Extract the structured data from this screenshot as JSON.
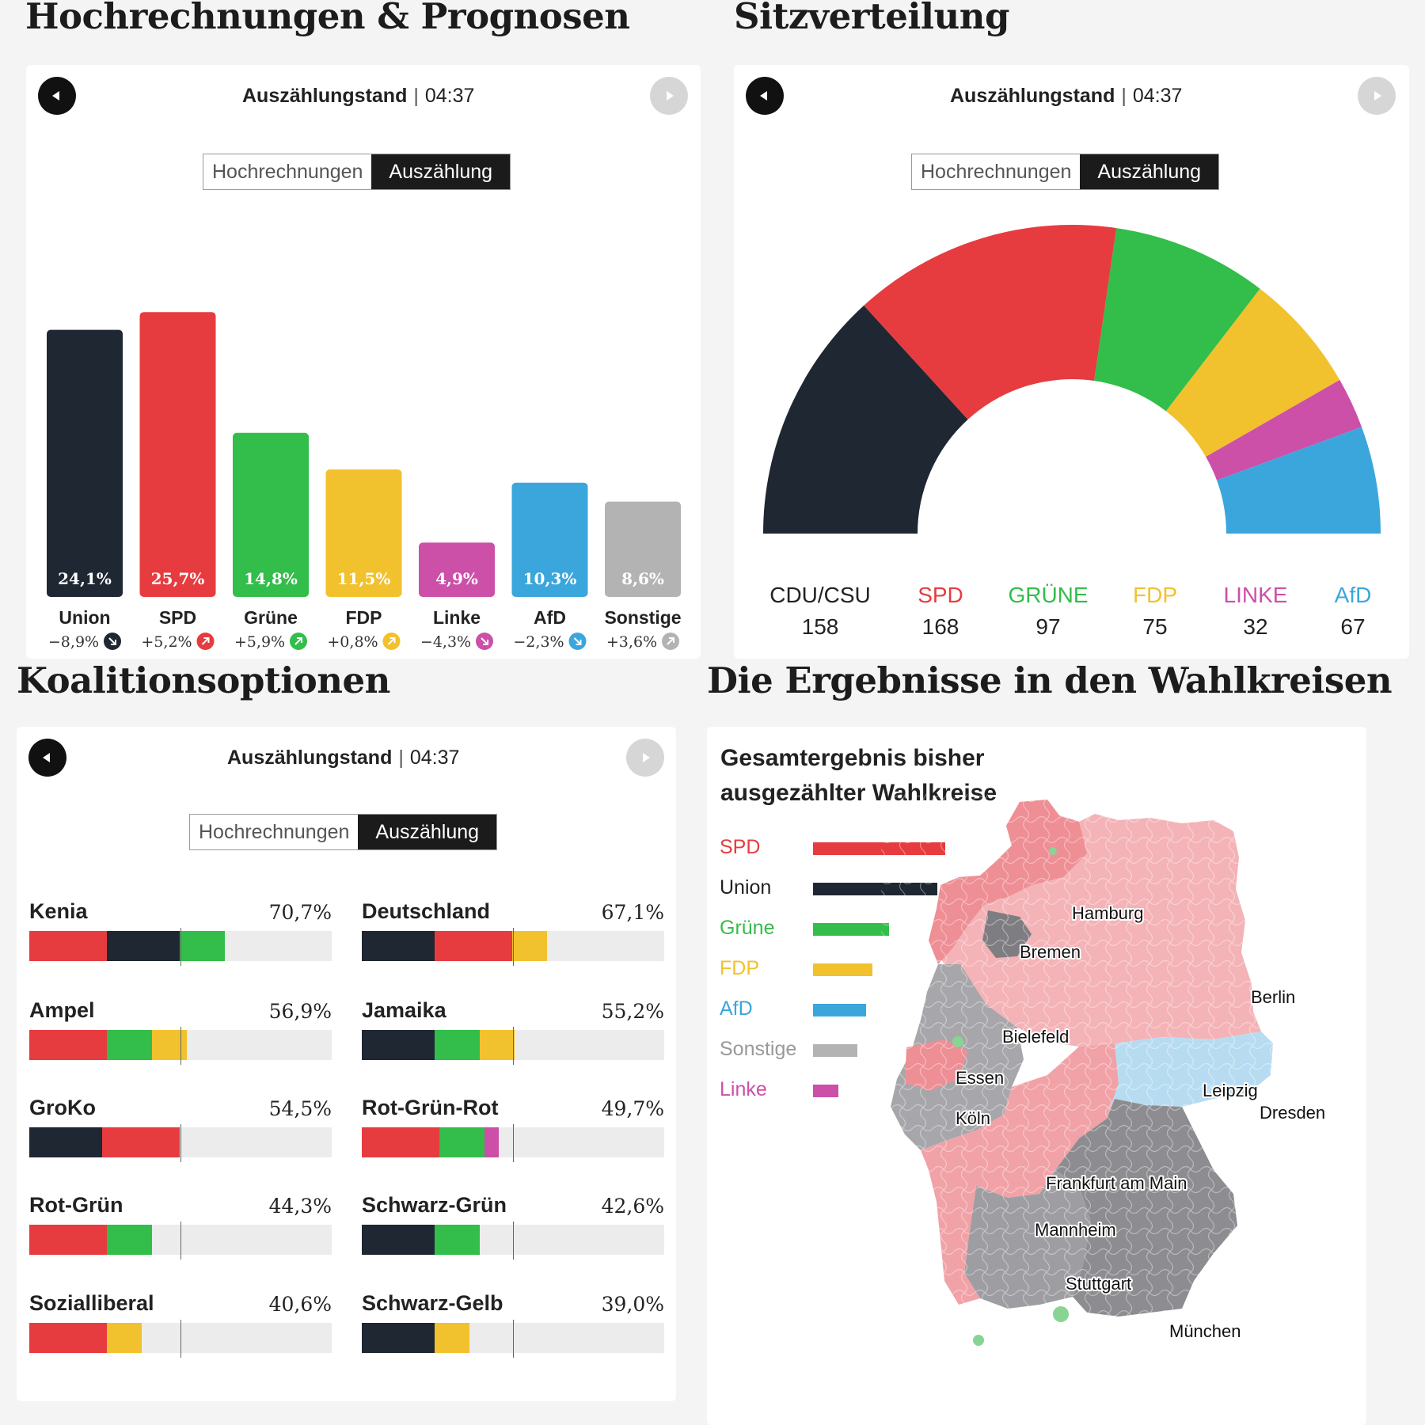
{
  "sections": {
    "projections_title": "Hochrechnungen & Prognosen",
    "seats_title": "Sitzverteilung",
    "coalitions_title": "Koalitionsoptionen",
    "districts_title": "Die Ergebnisse in den Wahlkreisen"
  },
  "status": {
    "label": "Auszählungstand",
    "separator": "|",
    "time": "04:37"
  },
  "toggle": {
    "option1": "Hochrechnungen",
    "option2": "Auszählung",
    "selected": "Auszählung"
  },
  "colors": {
    "union": "#1f2733",
    "spd": "#e63c3f",
    "gruene": "#33bd4b",
    "fdp": "#f2c12e",
    "linke": "#cc4fa8",
    "afd": "#3ba6dc",
    "sonstige": "#b3b3b3"
  },
  "chart_data": [
    {
      "type": "bar",
      "title": "Hochrechnungen & Prognosen",
      "categories": [
        "Union",
        "SPD",
        "Grüne",
        "FDP",
        "Linke",
        "AfD",
        "Sonstige"
      ],
      "values": [
        24.1,
        25.7,
        14.8,
        11.5,
        4.9,
        10.3,
        8.6
      ],
      "value_labels": [
        "24,1%",
        "25,7%",
        "14,8%",
        "11,5%",
        "4,9%",
        "10,3%",
        "8,6%"
      ],
      "changes": [
        "−8,9%",
        "+5,2%",
        "+5,9%",
        "+0,8%",
        "−4,3%",
        "−2,3%",
        "+3,6%"
      ],
      "change_direction": [
        "down",
        "up",
        "up",
        "up",
        "down",
        "down",
        "up"
      ],
      "colors": [
        "#1f2733",
        "#e63c3f",
        "#33bd4b",
        "#f2c12e",
        "#cc4fa8",
        "#3ba6dc",
        "#b3b3b3"
      ],
      "ylim": [
        0,
        30
      ]
    },
    {
      "type": "pie",
      "title": "Sitzverteilung",
      "style": "semicircle",
      "categories": [
        "CDU/CSU",
        "SPD",
        "GRÜNE",
        "FDP",
        "LINKE",
        "AfD"
      ],
      "values": [
        158,
        168,
        97,
        75,
        32,
        67
      ],
      "colors": [
        "#1f2733",
        "#e63c3f",
        "#33bd4b",
        "#f2c12e",
        "#cc4fa8",
        "#3ba6dc"
      ]
    },
    {
      "type": "bar",
      "title": "Koalitionsoptionen",
      "orientation": "horizontal-stacked",
      "majority_threshold": 50,
      "coalitions": [
        {
          "name": "Kenia",
          "total": "70,7%",
          "segments": [
            {
              "party": "spd",
              "value": 25.7
            },
            {
              "party": "union",
              "value": 24.1
            },
            {
              "party": "gruene",
              "value": 14.8
            }
          ]
        },
        {
          "name": "Deutschland",
          "total": "67,1%",
          "segments": [
            {
              "party": "union",
              "value": 24.1
            },
            {
              "party": "spd",
              "value": 25.7
            },
            {
              "party": "fdp",
              "value": 11.5
            }
          ]
        },
        {
          "name": "Ampel",
          "total": "56,9%",
          "segments": [
            {
              "party": "spd",
              "value": 25.7
            },
            {
              "party": "gruene",
              "value": 14.8
            },
            {
              "party": "fdp",
              "value": 11.5
            }
          ]
        },
        {
          "name": "Jamaika",
          "total": "55,2%",
          "segments": [
            {
              "party": "union",
              "value": 24.1
            },
            {
              "party": "gruene",
              "value": 14.8
            },
            {
              "party": "fdp",
              "value": 11.5
            }
          ]
        },
        {
          "name": "GroKo",
          "total": "54,5%",
          "segments": [
            {
              "party": "union",
              "value": 24.1
            },
            {
              "party": "spd",
              "value": 25.7
            }
          ]
        },
        {
          "name": "Rot-Grün-Rot",
          "total": "49,7%",
          "segments": [
            {
              "party": "spd",
              "value": 25.7
            },
            {
              "party": "gruene",
              "value": 14.8
            },
            {
              "party": "linke",
              "value": 4.9
            }
          ]
        },
        {
          "name": "Rot-Grün",
          "total": "44,3%",
          "segments": [
            {
              "party": "spd",
              "value": 25.7
            },
            {
              "party": "gruene",
              "value": 14.8
            }
          ]
        },
        {
          "name": "Schwarz-Grün",
          "total": "42,6%",
          "segments": [
            {
              "party": "union",
              "value": 24.1
            },
            {
              "party": "gruene",
              "value": 14.8
            }
          ]
        },
        {
          "name": "Sozialliberal",
          "total": "40,6%",
          "segments": [
            {
              "party": "spd",
              "value": 25.7
            },
            {
              "party": "fdp",
              "value": 11.5
            }
          ]
        },
        {
          "name": "Schwarz-Gelb",
          "total": "39,0%",
          "segments": [
            {
              "party": "union",
              "value": 24.1
            },
            {
              "party": "fdp",
              "value": 11.5
            }
          ]
        }
      ]
    },
    {
      "type": "bar",
      "title": "Gesamtergebnis bisher ausgezählter Wahlkreise",
      "orientation": "horizontal",
      "categories": [
        "SPD",
        "Union",
        "Grüne",
        "FDP",
        "AfD",
        "Sonstige",
        "Linke"
      ],
      "values": [
        25.7,
        24.1,
        14.8,
        11.5,
        10.3,
        8.6,
        4.9
      ],
      "colors": [
        "#e63c3f",
        "#1f2733",
        "#33bd4b",
        "#f2c12e",
        "#3ba6dc",
        "#b3b3b3",
        "#cc4fa8"
      ]
    }
  ],
  "map": {
    "title_line1": "Gesamtergebnis bisher",
    "title_line2": "ausgezählter Wahlkreise",
    "cities": [
      "Hamburg",
      "Bremen",
      "Berlin",
      "Bielefeld",
      "Essen",
      "Köln",
      "Leipzig",
      "Dresden",
      "Frankfurt am Main",
      "Mannheim",
      "Stuttgart",
      "München"
    ]
  }
}
